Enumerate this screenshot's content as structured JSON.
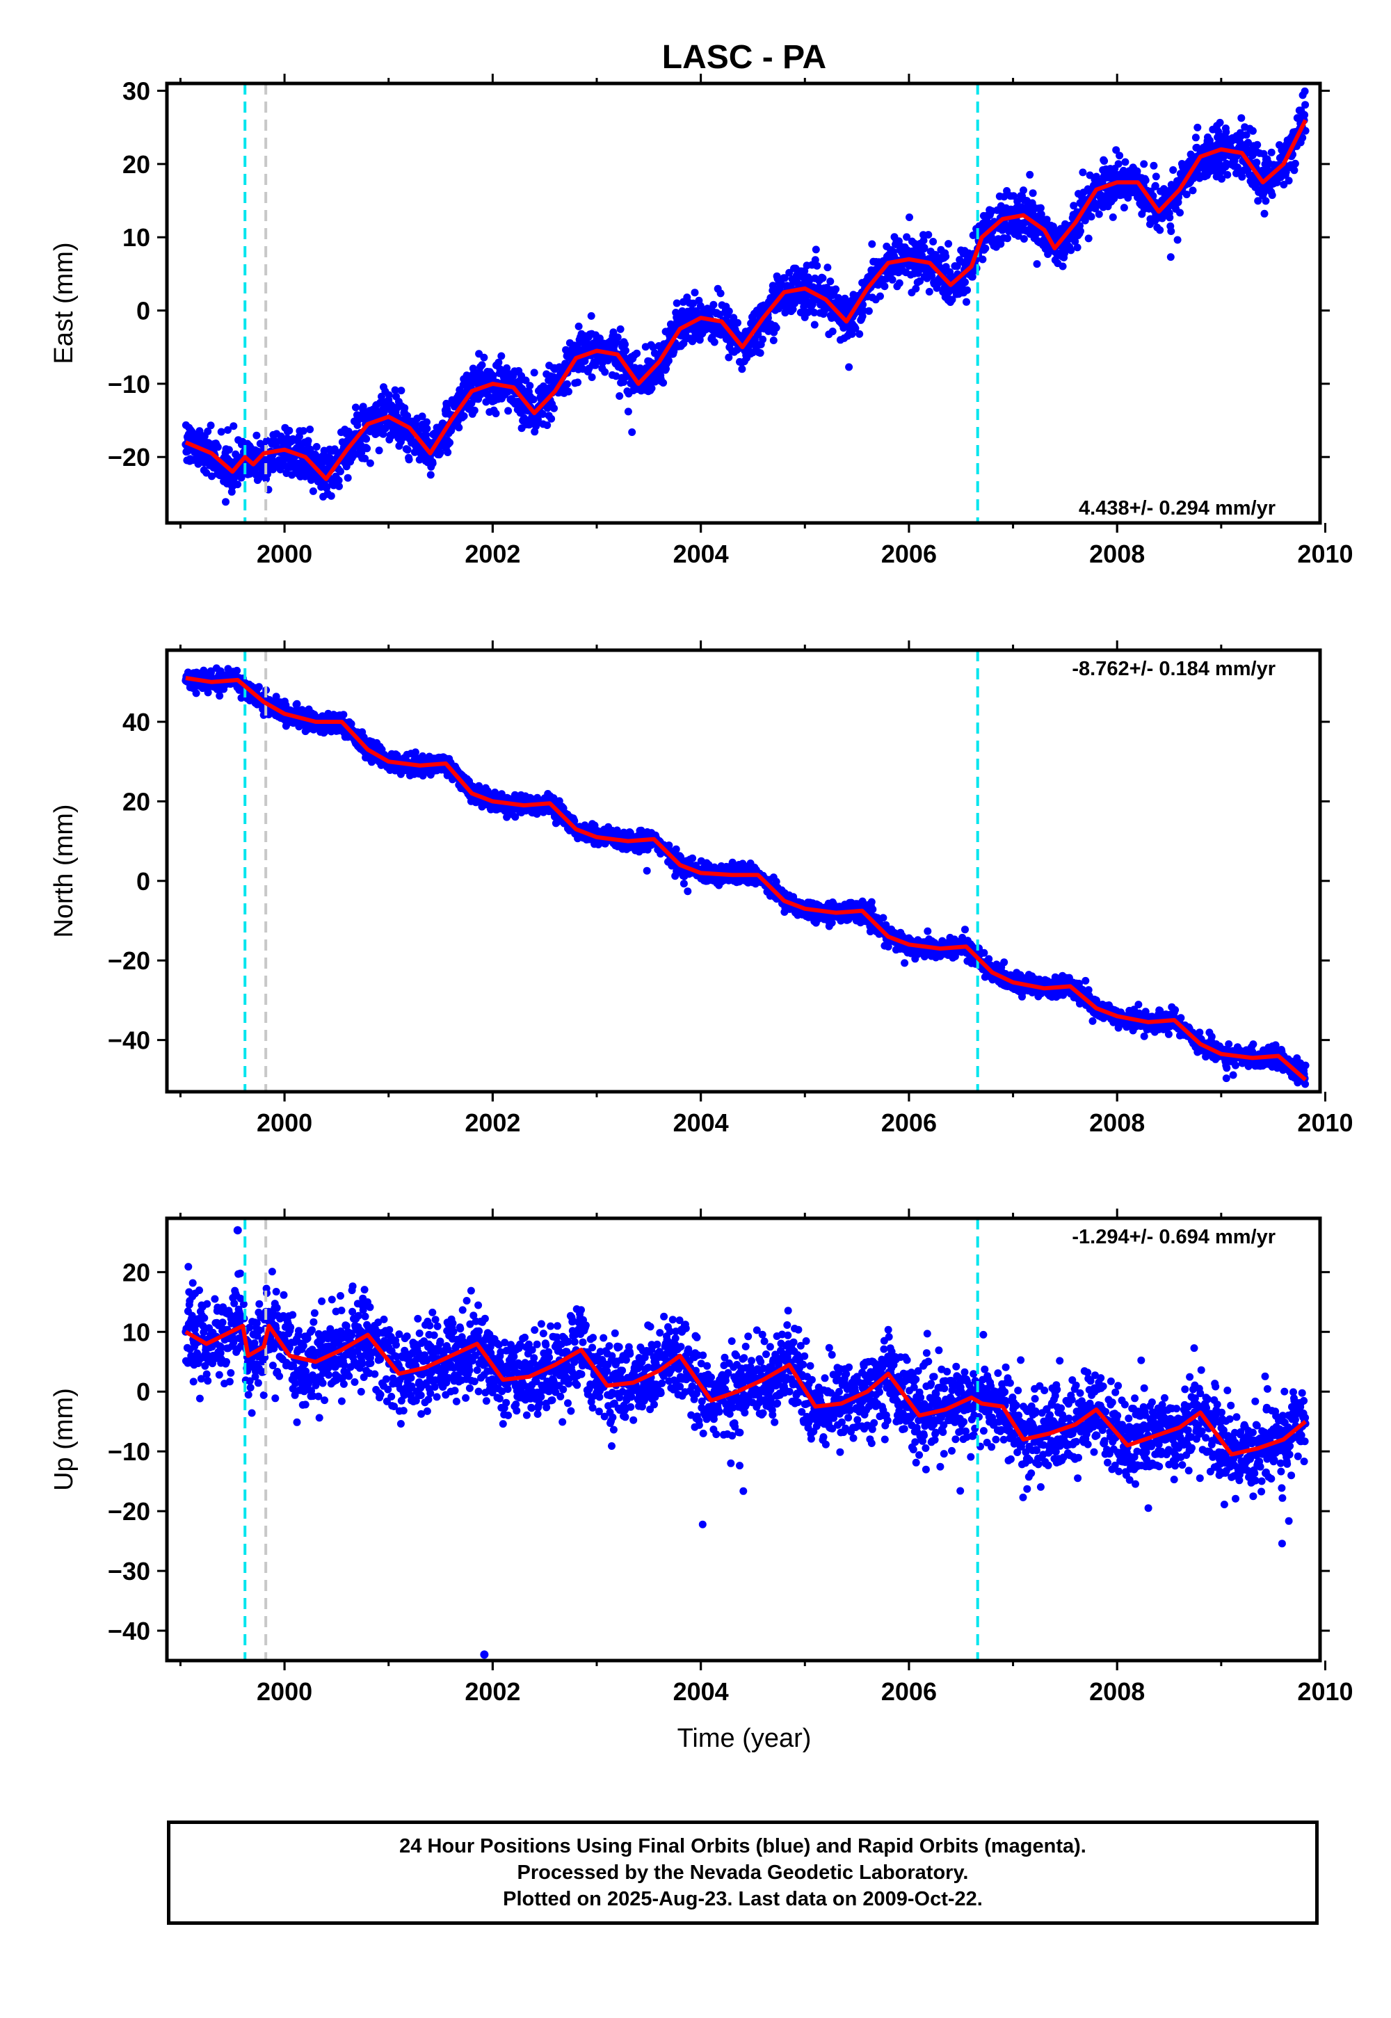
{
  "title": "LASC - PA",
  "xlabel": "Time (year)",
  "colors": {
    "points": "#0000ff",
    "model": "#ff0000",
    "equipment_change": "#00e5ee",
    "other_offset": "#c8c8c8",
    "axes": "#000000"
  },
  "chart_data": [
    {
      "type": "scatter",
      "component": "east",
      "ylabel": "East (mm)",
      "xlim": [
        1998.87,
        2009.95
      ],
      "ylim": [
        -29,
        31
      ],
      "xticks": [
        2000,
        2002,
        2004,
        2006,
        2008,
        2010
      ],
      "xtick_labels": [
        "2000",
        "2002",
        "2004",
        "2006",
        "2008",
        "2010"
      ],
      "yticks": [
        -20,
        -10,
        0,
        10,
        20,
        30
      ],
      "ytick_labels": [
        "−20",
        "−10",
        "0",
        "10",
        "20",
        "30"
      ],
      "rate_text": "4.438+/- 0.294 mm/yr",
      "rate_position": "bottom-right",
      "grid": false,
      "x_start": 1999.05,
      "x_end": 2009.81,
      "offsets": [
        {
          "x": 1999.62,
          "kind": "equipment_change"
        },
        {
          "x": 1999.82,
          "kind": "other_offset"
        },
        {
          "x": 2006.66,
          "kind": "equipment_change"
        }
      ],
      "series": [
        {
          "kind": "model_fit",
          "x": [
            1999.05,
            1999.3,
            1999.5,
            1999.62,
            1999.7,
            1999.8,
            2000.0,
            2000.2,
            2000.4,
            2000.6,
            2000.8,
            2001.0,
            2001.2,
            2001.4,
            2001.6,
            2001.8,
            2002.0,
            2002.2,
            2002.4,
            2002.6,
            2002.8,
            2003.0,
            2003.2,
            2003.4,
            2003.6,
            2003.8,
            2004.0,
            2004.2,
            2004.4,
            2004.6,
            2004.8,
            2005.0,
            2005.2,
            2005.4,
            2005.6,
            2005.8,
            2006.0,
            2006.2,
            2006.4,
            2006.6,
            2006.7,
            2006.9,
            2007.1,
            2007.3,
            2007.4,
            2007.6,
            2007.8,
            2008.0,
            2008.2,
            2008.4,
            2008.6,
            2008.8,
            2009.0,
            2009.2,
            2009.4,
            2009.6,
            2009.81
          ],
          "y": [
            -18,
            -19.5,
            -22,
            -20,
            -21,
            -19.5,
            -19,
            -20,
            -23,
            -19,
            -15.5,
            -14.5,
            -16,
            -19.5,
            -15,
            -11,
            -10,
            -10.5,
            -14,
            -11,
            -6.5,
            -5.5,
            -6,
            -10,
            -7,
            -2.5,
            -1,
            -1.5,
            -5,
            -1,
            2.5,
            3,
            1.5,
            -1.5,
            3,
            6.5,
            7,
            6.5,
            3.5,
            6,
            10,
            12.5,
            13,
            11,
            8.5,
            12,
            16.5,
            17.5,
            17.5,
            13.5,
            16.5,
            21,
            22,
            21.5,
            17.5,
            20,
            26
          ]
        },
        {
          "kind": "observations",
          "trend_rate": 4.438,
          "noise_sd": 1.6,
          "n_points": 3300
        }
      ]
    },
    {
      "type": "scatter",
      "component": "north",
      "ylabel": "North (mm)",
      "xlim": [
        1998.87,
        2009.95
      ],
      "ylim": [
        -53,
        58
      ],
      "xticks": [
        2000,
        2002,
        2004,
        2006,
        2008,
        2010
      ],
      "xtick_labels": [
        "2000",
        "2002",
        "2004",
        "2006",
        "2008",
        "2010"
      ],
      "yticks": [
        -40,
        -20,
        0,
        20,
        40
      ],
      "ytick_labels": [
        "−40",
        "−20",
        "0",
        "20",
        "40"
      ],
      "rate_text": "-8.762+/- 0.184 mm/yr",
      "rate_position": "top-right",
      "grid": false,
      "x_start": 1999.05,
      "x_end": 2009.81,
      "offsets": [
        {
          "x": 1999.62,
          "kind": "equipment_change"
        },
        {
          "x": 1999.82,
          "kind": "other_offset"
        },
        {
          "x": 2006.66,
          "kind": "equipment_change"
        }
      ],
      "series": [
        {
          "kind": "model_fit",
          "x": [
            1999.05,
            1999.3,
            1999.55,
            1999.8,
            2000.0,
            2000.3,
            2000.55,
            2000.8,
            2001.0,
            2001.3,
            2001.55,
            2001.8,
            2002.0,
            2002.3,
            2002.55,
            2002.8,
            2003.0,
            2003.3,
            2003.55,
            2003.8,
            2004.0,
            2004.3,
            2004.55,
            2004.8,
            2005.0,
            2005.3,
            2005.55,
            2005.8,
            2006.0,
            2006.3,
            2006.55,
            2006.8,
            2007.0,
            2007.3,
            2007.55,
            2007.8,
            2008.0,
            2008.3,
            2008.55,
            2008.8,
            2009.0,
            2009.3,
            2009.55,
            2009.81
          ],
          "y": [
            51,
            50,
            50.5,
            45,
            42,
            40,
            40,
            33,
            30,
            29,
            29.5,
            22,
            20,
            19,
            19.5,
            13,
            11,
            10,
            10.5,
            4,
            2,
            1.5,
            1.5,
            -5,
            -7,
            -8,
            -7.5,
            -14,
            -16,
            -17,
            -16.5,
            -23,
            -25.5,
            -27,
            -26.5,
            -32,
            -34,
            -35.5,
            -35,
            -41,
            -43.5,
            -44.5,
            -44,
            -50
          ]
        },
        {
          "kind": "observations",
          "trend_rate": -8.762,
          "noise_sd": 1.2,
          "n_points": 3300
        }
      ]
    },
    {
      "type": "scatter",
      "component": "up",
      "ylabel": "Up (mm)",
      "xlim": [
        1998.87,
        2009.95
      ],
      "ylim": [
        -45,
        29
      ],
      "xticks": [
        2000,
        2002,
        2004,
        2006,
        2008,
        2010
      ],
      "xtick_labels": [
        "2000",
        "2002",
        "2004",
        "2006",
        "2008",
        "2010"
      ],
      "yticks": [
        -40,
        -30,
        -20,
        -10,
        0,
        10,
        20
      ],
      "ytick_labels": [
        "−40",
        "−30",
        "−20",
        "−10",
        "0",
        "10",
        "20"
      ],
      "rate_text": "-1.294+/- 0.694 mm/yr",
      "rate_position": "top-right",
      "grid": false,
      "x_start": 1999.05,
      "x_end": 2009.81,
      "offsets": [
        {
          "x": 1999.62,
          "kind": "equipment_change"
        },
        {
          "x": 1999.82,
          "kind": "other_offset"
        },
        {
          "x": 2006.66,
          "kind": "equipment_change"
        }
      ],
      "outliers": [
        {
          "x": 2001.92,
          "y": -44
        },
        {
          "x": 1999.55,
          "y": 27
        }
      ],
      "series": [
        {
          "kind": "model_fit",
          "x": [
            1999.05,
            1999.25,
            1999.6,
            1999.65,
            1999.8,
            1999.85,
            2000.05,
            2000.3,
            2000.55,
            2000.8,
            2001.1,
            2001.35,
            2001.6,
            2001.85,
            2002.1,
            2002.35,
            2002.6,
            2002.85,
            2003.1,
            2003.35,
            2003.6,
            2003.8,
            2004.1,
            2004.35,
            2004.6,
            2004.85,
            2005.1,
            2005.35,
            2005.6,
            2005.8,
            2006.1,
            2006.35,
            2006.6,
            2006.7,
            2006.9,
            2007.1,
            2007.35,
            2007.6,
            2007.8,
            2008.1,
            2008.35,
            2008.6,
            2008.8,
            2009.1,
            2009.35,
            2009.6,
            2009.81
          ],
          "y": [
            10,
            8,
            11,
            6,
            7.5,
            11,
            6,
            5,
            7,
            9.5,
            3,
            4,
            6,
            8,
            2,
            2.5,
            4.5,
            7,
            1,
            1.5,
            3.5,
            6,
            -1.5,
            0,
            2,
            4.5,
            -2.5,
            -2,
            0,
            3,
            -4,
            -3,
            -1,
            -2,
            -2.5,
            -8,
            -7,
            -5.5,
            -3,
            -9,
            -7.5,
            -6,
            -3.5,
            -10.5,
            -9.5,
            -8,
            -5
          ]
        },
        {
          "kind": "observations",
          "trend_rate": -1.294,
          "noise_sd": 3.5,
          "n_points": 3300
        }
      ]
    }
  ],
  "footer": {
    "line1": "24 Hour Positions Using Final Orbits (blue) and Rapid Orbits (magenta).",
    "line2": "Processed by the Nevada Geodetic Laboratory.",
    "line3": "Plotted on 2025-Aug-23. Last data on 2009-Oct-22."
  }
}
